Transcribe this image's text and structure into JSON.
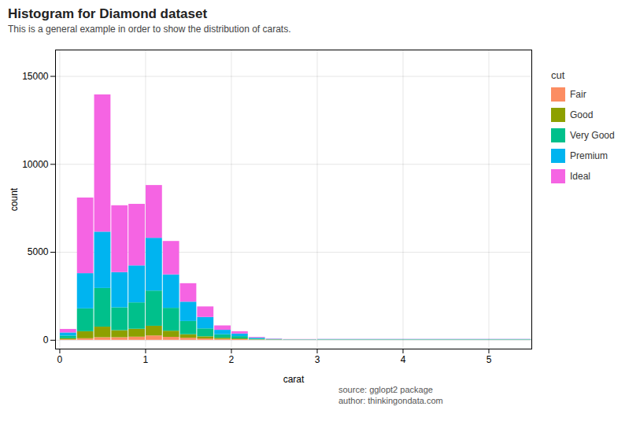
{
  "chart_data": {
    "type": "histogram",
    "title": "Histogram for Diamond dataset",
    "subtitle": "This is a general example in order to show the distribution of carats.",
    "xlabel": "carat",
    "ylabel": "count",
    "legend_title": "cut",
    "footnotes": [
      "source: gglopt2 package",
      "author: thinkingondata.com"
    ],
    "xlim": [
      -0.05,
      5.5
    ],
    "ylim": [
      -500,
      16500
    ],
    "xticks": [
      0,
      1,
      2,
      3,
      4,
      5
    ],
    "yticks": [
      0,
      5000,
      10000,
      15000
    ],
    "grid": true,
    "stacked": true,
    "legend": "right",
    "bins": [
      0.0,
      0.2,
      0.4,
      0.6,
      0.8,
      1.0,
      1.2,
      1.4,
      1.6,
      1.8,
      2.0,
      2.2,
      2.4,
      2.6,
      3.0,
      5.5
    ],
    "series": [
      {
        "name": "Fair",
        "color": "#FC8D62",
        "values": [
          30,
          90,
          150,
          150,
          180,
          250,
          170,
          120,
          80,
          50,
          40,
          15,
          10,
          10,
          10
        ]
      },
      {
        "name": "Good",
        "color": "#8DA000",
        "values": [
          60,
          400,
          600,
          400,
          450,
          550,
          350,
          200,
          120,
          70,
          40,
          15,
          10,
          5,
          5
        ]
      },
      {
        "name": "Very Good",
        "color": "#00C08B",
        "values": [
          150,
          1300,
          2200,
          1300,
          1500,
          2000,
          1300,
          750,
          450,
          200,
          130,
          40,
          20,
          10,
          15
        ]
      },
      {
        "name": "Premium",
        "color": "#00B4F0",
        "values": [
          180,
          2000,
          3200,
          2000,
          2100,
          3000,
          1900,
          1100,
          650,
          250,
          150,
          50,
          20,
          10,
          15
        ]
      },
      {
        "name": "Ideal",
        "color": "#F564E3",
        "values": [
          200,
          4300,
          7800,
          3800,
          3500,
          3000,
          1900,
          1050,
          600,
          250,
          130,
          40,
          20,
          10,
          10
        ]
      }
    ]
  }
}
